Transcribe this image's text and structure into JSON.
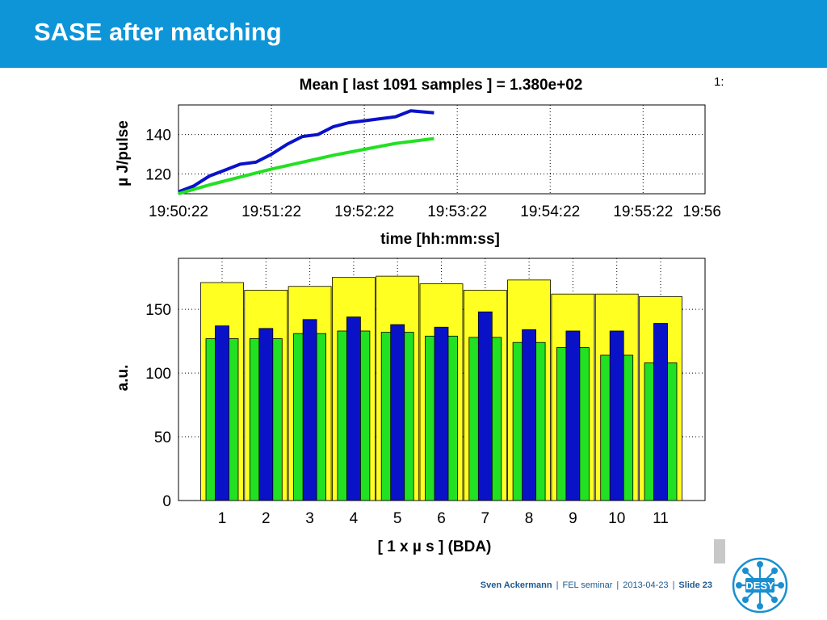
{
  "header": {
    "title": "SASE after matching"
  },
  "footer": {
    "author": "Sven Ackermann",
    "event": "FEL seminar",
    "date": "2013-04-23",
    "slide": "Slide 23"
  },
  "logo": {
    "text": "DESY"
  },
  "corner_text": "1:",
  "colors": {
    "header": "#0d95d8",
    "blue": "#0a12c8",
    "green": "#22e022",
    "yellow": "#ffff22"
  },
  "chart_data": [
    {
      "type": "line",
      "title": "Mean [ last 1091 samples ] = 1.380e+02",
      "xlabel": "time [hh:mm:ss]",
      "ylabel": "µ J/pulse",
      "x_ticks": [
        "19:50:22",
        "19:51:22",
        "19:52:22",
        "19:53:22",
        "19:54:22",
        "19:55:22",
        "19:56"
      ],
      "xlim": [
        "19:50:22",
        "19:56:02"
      ],
      "ylim": [
        110,
        155
      ],
      "y_ticks": [
        120,
        140
      ],
      "grid": true,
      "series": [
        {
          "color": "blue",
          "x": [
            "19:50:22",
            "19:50:32",
            "19:50:42",
            "19:50:52",
            "19:51:02",
            "19:51:12",
            "19:51:22",
            "19:51:32",
            "19:51:42",
            "19:51:52",
            "19:52:02",
            "19:52:12",
            "19:52:22",
            "19:52:32",
            "19:52:42",
            "19:52:52",
            "19:53:07"
          ],
          "y": [
            111,
            114,
            119,
            122,
            125,
            126,
            130,
            135,
            139,
            140,
            144,
            146,
            147,
            148,
            149,
            152,
            151
          ]
        },
        {
          "color": "green",
          "x": [
            "19:50:22",
            "19:50:42",
            "19:51:02",
            "19:51:22",
            "19:51:42",
            "19:52:02",
            "19:52:22",
            "19:52:42",
            "19:53:07"
          ],
          "y": [
            110,
            114.5,
            118.5,
            122.5,
            126,
            129.5,
            132.5,
            135.5,
            138
          ]
        }
      ]
    },
    {
      "type": "bar",
      "xlabel": "[ 1 x µ s ] (BDA)",
      "ylabel": "a.u.",
      "categories": [
        "1",
        "2",
        "3",
        "4",
        "5",
        "6",
        "7",
        "8",
        "9",
        "10",
        "11"
      ],
      "ylim": [
        0,
        190
      ],
      "y_ticks": [
        0,
        50,
        100,
        150
      ],
      "grid": true,
      "series": [
        {
          "color": "yellow",
          "values": [
            171,
            165,
            168,
            175,
            176,
            170,
            165,
            173,
            162,
            162,
            160
          ]
        },
        {
          "color": "green",
          "values": [
            127,
            127,
            131,
            133,
            132,
            129,
            128,
            124,
            120,
            114,
            108
          ]
        },
        {
          "color": "blue",
          "values": [
            137,
            135,
            142,
            144,
            138,
            136,
            148,
            134,
            133,
            133,
            139
          ]
        }
      ]
    }
  ]
}
